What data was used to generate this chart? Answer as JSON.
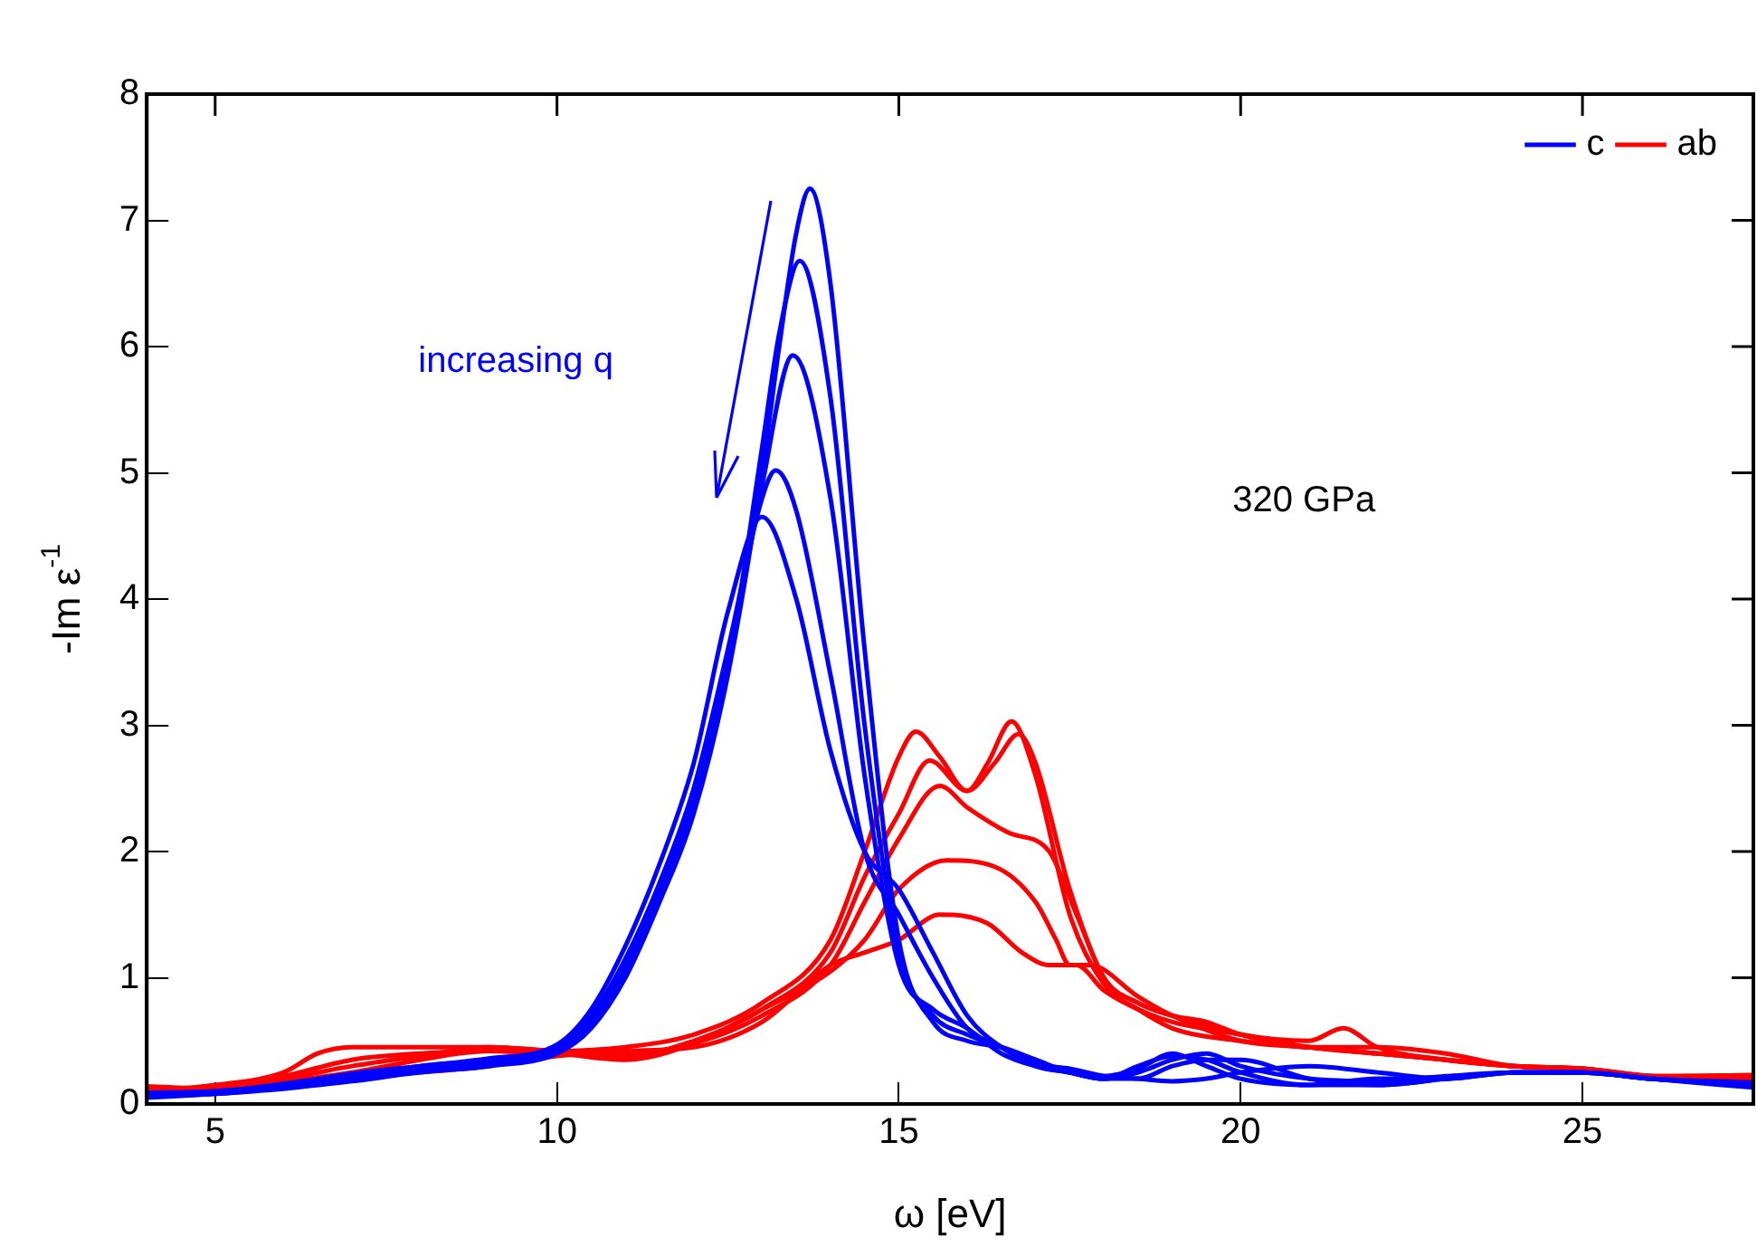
{
  "chart_data": {
    "type": "line",
    "xlabel": "ω [eV]",
    "ylabel": "-Im ε$^{-1}$",
    "xlim": [
      4,
      27.5
    ],
    "xticks": [
      5,
      10,
      15,
      20,
      25
    ],
    "ylim": [
      0,
      8
    ],
    "yticks": [
      0,
      1,
      2,
      3,
      4,
      5,
      6,
      7,
      8
    ],
    "grid": false,
    "legend": "top right",
    "marker": "none",
    "line_style": "solid",
    "annotations": [
      "increasing q",
      "320 GPa"
    ],
    "series": [
      {
        "name": "c",
        "color": "#0000ff",
        "x": [
          4,
          5,
          6,
          7,
          8,
          9,
          10,
          10.5,
          11,
          11.5,
          12,
          12.5,
          13,
          13.25,
          13.5,
          13.7,
          14,
          14.5,
          15,
          15.5,
          16,
          16.5,
          17,
          17.5,
          18,
          18.5,
          19,
          19.5,
          20,
          21,
          22,
          23,
          24,
          25,
          26,
          27.5
        ],
        "values": [
          0.05,
          0.08,
          0.12,
          0.18,
          0.25,
          0.3,
          0.4,
          0.6,
          1.0,
          1.6,
          2.3,
          3.4,
          5.0,
          6.0,
          6.9,
          7.25,
          6.5,
          3.6,
          1.3,
          0.65,
          0.5,
          0.45,
          0.35,
          0.25,
          0.22,
          0.28,
          0.4,
          0.3,
          0.2,
          0.15,
          0.15,
          0.2,
          0.25,
          0.25,
          0.2,
          0.15
        ]
      },
      {
        "color": "#0000ff",
        "x": [
          4,
          5,
          6,
          7,
          8,
          9,
          10,
          10.5,
          11,
          11.5,
          12,
          12.5,
          13,
          13.25,
          13.55,
          14,
          14.5,
          15,
          15.5,
          16,
          16.5,
          17,
          17.5,
          18,
          18.5,
          19,
          19.5,
          20,
          21,
          22,
          23,
          24,
          25,
          26,
          27.5
        ],
        "values": [
          0.06,
          0.08,
          0.13,
          0.2,
          0.27,
          0.32,
          0.42,
          0.62,
          1.05,
          1.65,
          2.35,
          3.45,
          5.2,
          6.1,
          6.68,
          5.6,
          3.0,
          1.2,
          0.7,
          0.55,
          0.45,
          0.35,
          0.25,
          0.2,
          0.3,
          0.38,
          0.35,
          0.25,
          0.15,
          0.2,
          0.2,
          0.25,
          0.25,
          0.2,
          0.16
        ]
      },
      {
        "color": "#0000ff",
        "x": [
          4,
          5,
          6,
          7,
          8,
          9,
          10,
          10.5,
          11,
          11.5,
          12,
          12.5,
          13,
          13.45,
          14,
          14.5,
          15,
          15.5,
          16,
          16.5,
          17,
          17.5,
          18,
          18.5,
          19,
          19.5,
          20,
          21,
          22,
          23,
          24,
          25,
          26,
          27.5
        ],
        "values": [
          0.07,
          0.09,
          0.14,
          0.22,
          0.28,
          0.34,
          0.44,
          0.65,
          1.1,
          1.7,
          2.4,
          3.5,
          4.9,
          5.93,
          4.8,
          2.6,
          1.1,
          0.75,
          0.6,
          0.4,
          0.3,
          0.25,
          0.2,
          0.25,
          0.35,
          0.4,
          0.3,
          0.2,
          0.18,
          0.22,
          0.25,
          0.25,
          0.2,
          0.14
        ]
      },
      {
        "color": "#0000ff",
        "x": [
          4,
          5,
          6,
          7,
          8,
          9,
          10,
          10.5,
          11,
          11.5,
          12,
          12.5,
          13,
          13.2,
          13.5,
          14,
          14.5,
          15,
          15.5,
          16,
          16.5,
          17,
          17.5,
          18,
          18.5,
          19,
          19.5,
          20,
          21,
          22,
          23,
          24,
          25,
          26,
          27.5
        ],
        "values": [
          0.08,
          0.1,
          0.15,
          0.23,
          0.3,
          0.35,
          0.45,
          0.7,
          1.15,
          1.75,
          2.5,
          3.6,
          4.8,
          5.02,
          4.7,
          3.4,
          2.0,
          1.5,
          1.0,
          0.6,
          0.45,
          0.3,
          0.25,
          0.2,
          0.2,
          0.3,
          0.35,
          0.35,
          0.2,
          0.15,
          0.2,
          0.25,
          0.25,
          0.2,
          0.17
        ]
      },
      {
        "color": "#0000ff",
        "x": [
          4,
          5,
          6,
          7,
          8,
          9,
          10,
          10.5,
          11,
          11.5,
          12,
          12.5,
          13,
          13.5,
          14,
          14.5,
          15,
          15.5,
          16,
          16.5,
          17,
          17.5,
          18,
          18.5,
          19,
          19.5,
          20,
          21,
          22,
          23,
          24,
          25,
          26,
          27.5
        ],
        "values": [
          0.09,
          0.1,
          0.16,
          0.24,
          0.3,
          0.36,
          0.47,
          0.75,
          1.25,
          1.9,
          2.7,
          3.9,
          4.65,
          4.0,
          2.8,
          2.0,
          1.7,
          1.2,
          0.7,
          0.45,
          0.32,
          0.28,
          0.22,
          0.2,
          0.18,
          0.2,
          0.25,
          0.3,
          0.25,
          0.2,
          0.25,
          0.25,
          0.2,
          0.13
        ]
      },
      {
        "name": "ab",
        "color": "#ff0000",
        "x": [
          4,
          5,
          6,
          6.5,
          7,
          8,
          9,
          10,
          11,
          12,
          13,
          14,
          14.5,
          15,
          15.25,
          15.6,
          16,
          16.3,
          16.65,
          17,
          17.5,
          18,
          18.5,
          19,
          20,
          21,
          22,
          23,
          24,
          25,
          26,
          27.5
        ],
        "values": [
          0.1,
          0.15,
          0.25,
          0.4,
          0.45,
          0.45,
          0.45,
          0.42,
          0.45,
          0.55,
          0.8,
          1.3,
          2.0,
          2.75,
          2.95,
          2.75,
          2.48,
          2.7,
          3.03,
          2.6,
          1.5,
          0.95,
          0.75,
          0.6,
          0.5,
          0.45,
          0.4,
          0.35,
          0.3,
          0.28,
          0.22,
          0.2
        ]
      },
      {
        "color": "#ff0000",
        "x": [
          4,
          5,
          6,
          7,
          8,
          9,
          10,
          11,
          12,
          13,
          14,
          14.5,
          15,
          15.45,
          16,
          16.4,
          16.75,
          17,
          17.5,
          18,
          18.5,
          19,
          20,
          21,
          21.5,
          22,
          23,
          24,
          25,
          26,
          27.5
        ],
        "values": [
          0.11,
          0.14,
          0.22,
          0.35,
          0.4,
          0.42,
          0.4,
          0.38,
          0.5,
          0.75,
          1.2,
          1.8,
          2.3,
          2.72,
          2.48,
          2.7,
          2.93,
          2.7,
          1.7,
          1.0,
          0.8,
          0.7,
          0.55,
          0.5,
          0.6,
          0.45,
          0.35,
          0.3,
          0.28,
          0.22,
          0.21
        ]
      },
      {
        "color": "#ff0000",
        "x": [
          4,
          5,
          6,
          7,
          8,
          9,
          10,
          11,
          12,
          13,
          14,
          14.5,
          15,
          15.6,
          16,
          16.6,
          17.2,
          17.6,
          18,
          18.5,
          19,
          19.5,
          20,
          21,
          22,
          23,
          24,
          25,
          26,
          27.5
        ],
        "values": [
          0.12,
          0.13,
          0.2,
          0.3,
          0.38,
          0.45,
          0.42,
          0.4,
          0.48,
          0.7,
          1.1,
          1.6,
          2.1,
          2.52,
          2.35,
          2.15,
          2.0,
          1.5,
          1.0,
          0.8,
          0.7,
          0.65,
          0.55,
          0.45,
          0.45,
          0.4,
          0.3,
          0.28,
          0.22,
          0.19
        ]
      },
      {
        "color": "#ff0000",
        "x": [
          4,
          5,
          6,
          7,
          8,
          9,
          10,
          11,
          12,
          13,
          14,
          14.5,
          15,
          15.7,
          16.4,
          17,
          17.3,
          17.5,
          17.8,
          18.5,
          19,
          20,
          21,
          22,
          23,
          24,
          25,
          26,
          27.5
        ],
        "values": [
          0.13,
          0.12,
          0.18,
          0.25,
          0.35,
          0.42,
          0.4,
          0.35,
          0.48,
          0.75,
          1.05,
          1.3,
          1.7,
          1.93,
          1.88,
          1.6,
          1.3,
          1.1,
          1.1,
          0.85,
          0.7,
          0.5,
          0.45,
          0.4,
          0.35,
          0.3,
          0.28,
          0.22,
          0.22
        ]
      },
      {
        "color": "#ff0000",
        "x": [
          4,
          5,
          6,
          7,
          8,
          9,
          10,
          11,
          12,
          13,
          14,
          14.5,
          15,
          15.6,
          16.3,
          16.8,
          17.2,
          17.6,
          18,
          18.5,
          19,
          20,
          21,
          22,
          23,
          24,
          25,
          26,
          27.5
        ],
        "values": [
          0.14,
          0.12,
          0.18,
          0.22,
          0.25,
          0.3,
          0.38,
          0.42,
          0.45,
          0.65,
          1.1,
          1.2,
          1.3,
          1.5,
          1.43,
          1.2,
          1.1,
          1.1,
          0.9,
          0.75,
          0.65,
          0.55,
          0.45,
          0.4,
          0.35,
          0.3,
          0.28,
          0.22,
          0.23
        ]
      }
    ]
  }
}
